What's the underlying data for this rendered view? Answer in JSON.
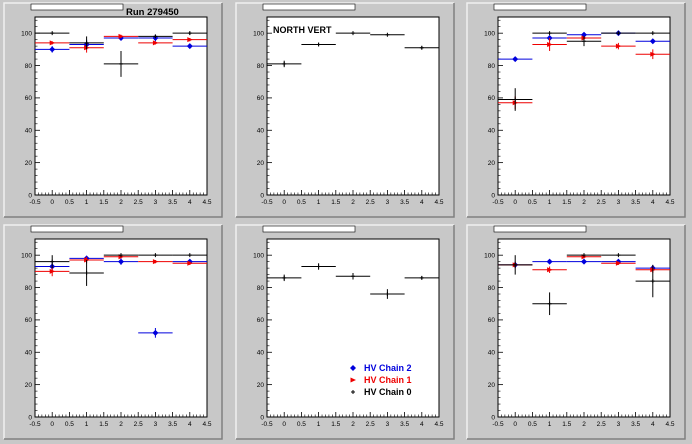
{
  "header": {
    "run_label": "Run 279450"
  },
  "colors": {
    "chain2": "#0000dd",
    "chain1": "#ee0000",
    "chain0": "#000000",
    "frame_bg": "#ffffff",
    "canvas_bg": "#c8c8c8"
  },
  "legend": {
    "entries": [
      {
        "label": "HV Chain 2",
        "color": "#0000dd",
        "marker": "diamond"
      },
      {
        "label": "HV Chain 1",
        "color": "#ee0000",
        "marker": "triangle"
      },
      {
        "label": "HV Chain 0",
        "color": "#000000",
        "marker": "cross"
      }
    ]
  },
  "chart_data": [
    {
      "type": "scatter",
      "title": "",
      "annotation": "",
      "xlim": [
        -0.5,
        4.5
      ],
      "ylim": [
        0,
        110
      ],
      "xticks": [
        "-0.5",
        "0",
        "0.5",
        "1",
        "1.5",
        "2",
        "2.5",
        "3",
        "3.5",
        "4",
        "4.5"
      ],
      "yticks": [
        "0",
        "20",
        "40",
        "60",
        "80",
        "100"
      ],
      "series": [
        {
          "name": "HV Chain 2",
          "x": [
            0,
            1,
            2,
            3,
            4
          ],
          "y": [
            90,
            93,
            97,
            97,
            92
          ],
          "yerr": [
            2,
            3,
            1,
            2,
            1
          ]
        },
        {
          "name": "HV Chain 1",
          "x": [
            0,
            1,
            2,
            3,
            4
          ],
          "y": [
            94,
            91,
            98,
            94,
            96
          ],
          "yerr": [
            1,
            3,
            1,
            1,
            1
          ]
        },
        {
          "name": "HV Chain 0",
          "x": [
            0,
            1,
            2,
            3,
            4
          ],
          "y": [
            100,
            94,
            81,
            98,
            100
          ],
          "yerr": [
            0,
            4,
            8,
            1,
            1
          ]
        }
      ]
    },
    {
      "type": "scatter",
      "title": "",
      "annotation": "NORTH VERT",
      "xlim": [
        -0.5,
        4.5
      ],
      "ylim": [
        0,
        110
      ],
      "xticks": [
        "-0.5",
        "0",
        "0.5",
        "1",
        "1.5",
        "2",
        "2.5",
        "3",
        "3.5",
        "4",
        "4.5"
      ],
      "yticks": [
        "0",
        "20",
        "40",
        "60",
        "80",
        "100"
      ],
      "series": [
        {
          "name": "HV Chain 0",
          "x": [
            0,
            1,
            2,
            3,
            4
          ],
          "y": [
            81,
            93,
            100,
            99,
            91
          ],
          "yerr": [
            2,
            1,
            0,
            0,
            1
          ]
        }
      ]
    },
    {
      "type": "scatter",
      "title": "",
      "annotation": "",
      "xlim": [
        -0.5,
        4.5
      ],
      "ylim": [
        0,
        110
      ],
      "xticks": [
        "-0.5",
        "0",
        "0.5",
        "1",
        "1.5",
        "2",
        "2.5",
        "3",
        "3.5",
        "4",
        "4.5"
      ],
      "yticks": [
        "0",
        "20",
        "40",
        "60",
        "80",
        "100"
      ],
      "series": [
        {
          "name": "HV Chain 2",
          "x": [
            0,
            1,
            2,
            3,
            4
          ],
          "y": [
            84,
            97,
            99,
            100,
            95
          ],
          "yerr": [
            1,
            1,
            1,
            1,
            1
          ]
        },
        {
          "name": "HV Chain 1",
          "x": [
            0,
            1,
            2,
            3,
            4
          ],
          "y": [
            57,
            93,
            97,
            92,
            87
          ],
          "yerr": [
            4,
            4,
            1,
            2,
            3
          ]
        },
        {
          "name": "HV Chain 0",
          "x": [
            0,
            1,
            2,
            3,
            4
          ],
          "y": [
            59,
            100,
            95,
            100,
            100
          ],
          "yerr": [
            7,
            0,
            3,
            0,
            0
          ]
        }
      ]
    },
    {
      "type": "scatter",
      "title": "",
      "annotation": "",
      "xlim": [
        -0.5,
        4.5
      ],
      "ylim": [
        0,
        110
      ],
      "xticks": [
        "-0.5",
        "0",
        "0.5",
        "1",
        "1.5",
        "2",
        "2.5",
        "3",
        "3.5",
        "4",
        "4.5"
      ],
      "yticks": [
        "0",
        "20",
        "40",
        "60",
        "80",
        "100"
      ],
      "series": [
        {
          "name": "HV Chain 2",
          "x": [
            0,
            1,
            2,
            3,
            4
          ],
          "y": [
            93,
            98,
            96,
            52,
            96
          ],
          "yerr": [
            3,
            1,
            2,
            3,
            1
          ]
        },
        {
          "name": "HV Chain 1",
          "x": [
            0,
            1,
            2,
            3,
            4
          ],
          "y": [
            90,
            97,
            99,
            96,
            95
          ],
          "yerr": [
            3,
            2,
            1,
            1,
            1
          ]
        },
        {
          "name": "HV Chain 0",
          "x": [
            0,
            1,
            2,
            3,
            4
          ],
          "y": [
            96,
            89,
            100,
            100,
            100
          ],
          "yerr": [
            4,
            8,
            0,
            0,
            0
          ]
        }
      ]
    },
    {
      "type": "scatter",
      "title": "",
      "annotation": "",
      "xlim": [
        -0.5,
        4.5
      ],
      "ylim": [
        0,
        110
      ],
      "xticks": [
        "-0.5",
        "0",
        "0.5",
        "1",
        "1.5",
        "2",
        "2.5",
        "3",
        "3.5",
        "4",
        "4.5"
      ],
      "yticks": [
        "0",
        "20",
        "40",
        "60",
        "80",
        "100"
      ],
      "series": [
        {
          "name": "HV Chain 0",
          "x": [
            0,
            1,
            2,
            3,
            4
          ],
          "y": [
            86,
            93,
            87,
            76,
            86
          ],
          "yerr": [
            2,
            2,
            2,
            3,
            1
          ]
        }
      ]
    },
    {
      "type": "scatter",
      "title": "",
      "annotation": "",
      "xlim": [
        -0.5,
        4.5
      ],
      "ylim": [
        0,
        110
      ],
      "xticks": [
        "-0.5",
        "0",
        "0.5",
        "1",
        "1.5",
        "2",
        "2.5",
        "3",
        "3.5",
        "4",
        "4.5"
      ],
      "yticks": [
        "0",
        "20",
        "40",
        "60",
        "80",
        "100"
      ],
      "series": [
        {
          "name": "HV Chain 2",
          "x": [
            0,
            1,
            2,
            3,
            4
          ],
          "y": [
            94,
            96,
            96,
            96,
            92
          ],
          "yerr": [
            2,
            1,
            1,
            1,
            2
          ]
        },
        {
          "name": "HV Chain 1",
          "x": [
            0,
            1,
            2,
            3,
            4
          ],
          "y": [
            94,
            91,
            99,
            95,
            91
          ],
          "yerr": [
            2,
            2,
            1,
            1,
            2
          ]
        },
        {
          "name": "HV Chain 0",
          "x": [
            0,
            1,
            2,
            3,
            4
          ],
          "y": [
            94,
            70,
            100,
            100,
            84
          ],
          "yerr": [
            6,
            7,
            0,
            0,
            10
          ]
        }
      ]
    }
  ]
}
